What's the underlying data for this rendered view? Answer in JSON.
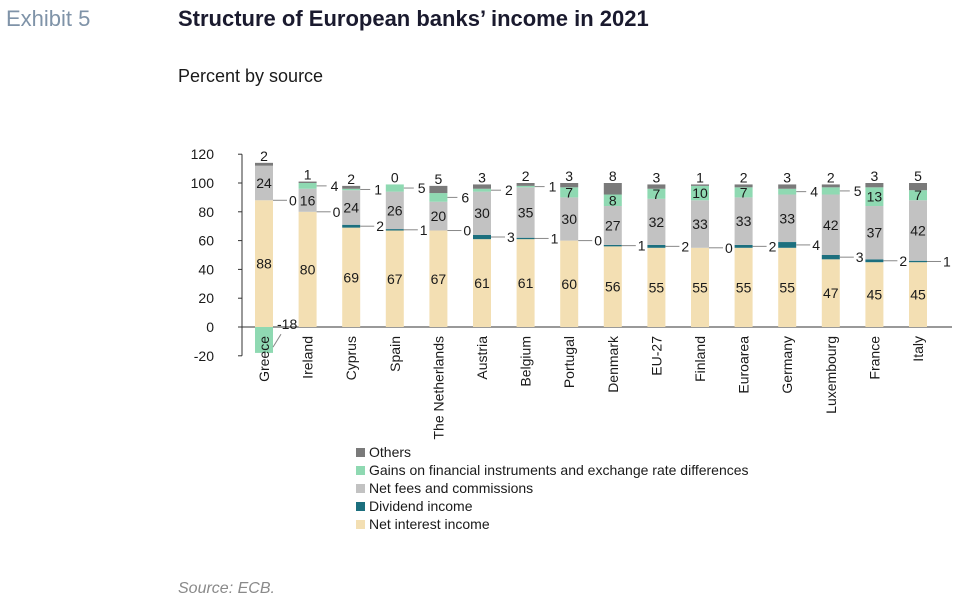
{
  "header": {
    "exhibit": "Exhibit 5",
    "title": "Structure of European banks’ income in 2021",
    "subtitle": "Percent by source"
  },
  "footer": {
    "source": "Source: ECB."
  },
  "chart_data": {
    "type": "bar",
    "stacked": true,
    "title": "Structure of European banks’ income in 2021",
    "subtitle": "Percent by source",
    "xlabel": "",
    "ylabel": "",
    "ylim": [
      -20,
      120
    ],
    "yticks": [
      -20,
      0,
      20,
      40,
      60,
      80,
      100,
      120
    ],
    "grid": false,
    "legend_position": "bottom",
    "categories": [
      "Greece",
      "Ireland",
      "Cyprus",
      "Spain",
      "The Netherlands",
      "Austria",
      "Belgium",
      "Portugal",
      "Denmark",
      "EU-27",
      "Finland",
      "Euroarea",
      "Germany",
      "Luxembourg",
      "France",
      "Italy"
    ],
    "series": [
      {
        "name": "Net interest income",
        "color": "#f3dfb3",
        "values": [
          88,
          80,
          69,
          67,
          67,
          61,
          61,
          60,
          56,
          55,
          55,
          55,
          55,
          47,
          45,
          45
        ]
      },
      {
        "name": "Dividend income",
        "color": "#1c6f7e",
        "values": [
          0,
          0,
          2,
          1,
          0,
          3,
          1,
          0,
          1,
          2,
          0,
          2,
          4,
          3,
          2,
          1
        ]
      },
      {
        "name": "Net fees and commissions",
        "color": "#c2c2c2",
        "values": [
          24,
          16,
          24,
          26,
          20,
          30,
          35,
          30,
          27,
          32,
          33,
          33,
          33,
          42,
          37,
          42
        ]
      },
      {
        "name": "Gains on financial instruments and exchange rate differences",
        "color": "#8fd9b2",
        "values": [
          -18,
          4,
          1,
          5,
          6,
          2,
          1,
          7,
          8,
          7,
          10,
          7,
          4,
          5,
          13,
          7
        ]
      },
      {
        "name": "Others",
        "color": "#7a7a7a",
        "values": [
          2,
          1,
          2,
          0,
          5,
          3,
          2,
          3,
          8,
          3,
          1,
          2,
          3,
          2,
          3,
          5
        ]
      }
    ]
  }
}
